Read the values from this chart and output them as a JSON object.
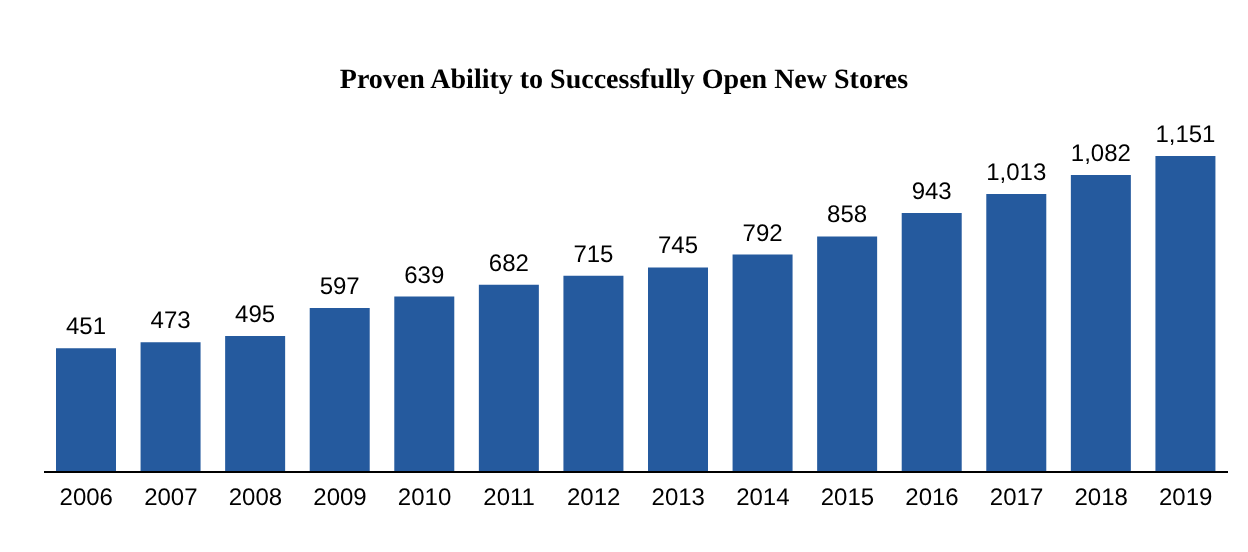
{
  "chart_data": {
    "type": "bar",
    "title": "Proven Ability to Successfully Open New Stores",
    "categories": [
      "2006",
      "2007",
      "2008",
      "2009",
      "2010",
      "2011",
      "2012",
      "2013",
      "2014",
      "2015",
      "2016",
      "2017",
      "2018",
      "2019"
    ],
    "values": [
      451,
      473,
      495,
      597,
      639,
      682,
      715,
      745,
      792,
      858,
      943,
      1013,
      1082,
      1151
    ],
    "value_labels": [
      "451",
      "473",
      "495",
      "597",
      "639",
      "682",
      "715",
      "745",
      "792",
      "858",
      "943",
      "1,013",
      "1,082",
      "1,151"
    ],
    "color": "#255a9e"
  }
}
